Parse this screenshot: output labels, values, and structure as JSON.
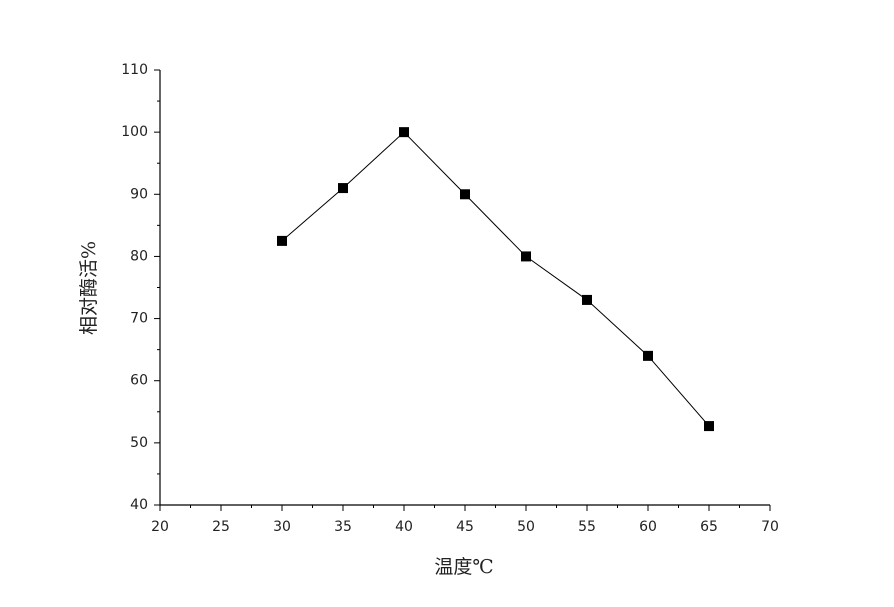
{
  "chart_data": {
    "type": "line",
    "x_label": "温度℃",
    "y_label": "相对酶活%",
    "x": [
      30,
      35,
      40,
      45,
      50,
      55,
      60,
      65
    ],
    "series": [
      {
        "name": null,
        "color": "#000000",
        "values": [
          82.5,
          91,
          100,
          90,
          80,
          73,
          64,
          52.7
        ]
      }
    ],
    "xlim": [
      20,
      70
    ],
    "xticks": [
      20,
      25,
      30,
      35,
      40,
      45,
      50,
      55,
      60,
      65,
      70
    ],
    "ylim": [
      40,
      110
    ],
    "yticks": [
      40,
      50,
      60,
      70,
      80,
      90,
      100,
      110
    ],
    "grid": false
  }
}
